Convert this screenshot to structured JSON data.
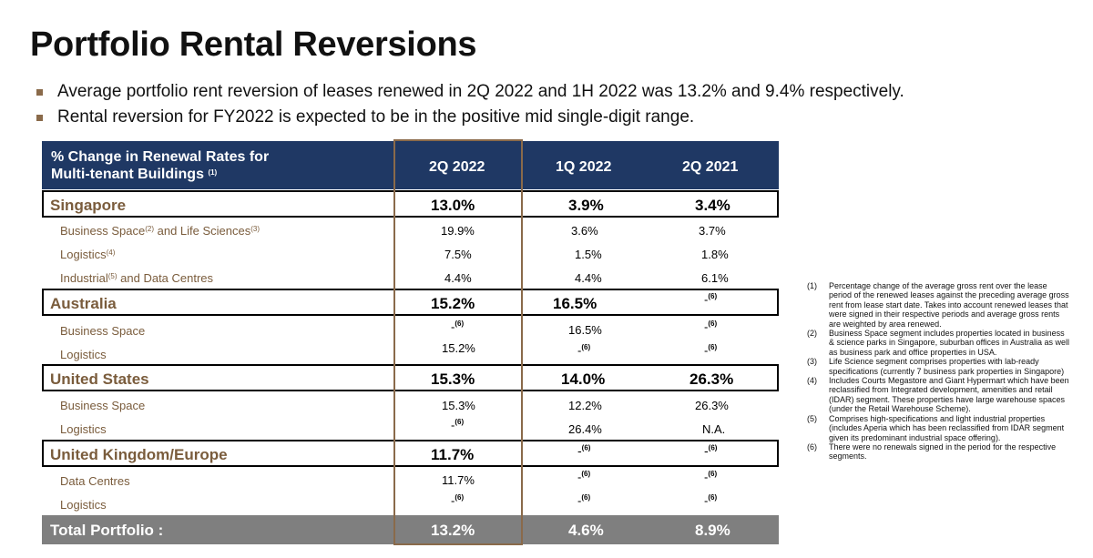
{
  "title": "Portfolio Rental Reversions",
  "bullets": [
    "Average portfolio rent reversion of leases renewed in 2Q 2022 and 1H 2022 was 13.2% and 9.4% respectively.",
    "Rental reversion for FY2022 is expected to be in the positive mid single-digit range."
  ],
  "table": {
    "header_label_line1": "% Change in Renewal Rates for",
    "header_label_line2": "Multi-tenant Buildings",
    "header_label_note": "(1)",
    "columns": [
      "2Q 2022",
      "1Q 2022",
      "2Q 2021"
    ],
    "highlighted_column": "2Q 2022",
    "not_renewed_mark": "-",
    "not_renewed_note": "(6)",
    "segments": {
      "singapore": {
        "label": "Singapore",
        "values": [
          "13.0%",
          "3.9%",
          "3.4%"
        ],
        "rows": {
          "business_space": {
            "label_a": "Business Space",
            "note_a": "(2)",
            "label_b": " and Life Sciences",
            "note_b": "(3)",
            "values": [
              "19.9%",
              "3.6%",
              "3.7%"
            ]
          },
          "logistics": {
            "label": "Logistics",
            "note": "(4)",
            "values": [
              "7.5%",
              "1.5%",
              "1.8%"
            ]
          },
          "industrial": {
            "label_a": "Industrial",
            "note_a": "(5)",
            "label_b": " and Data Centres",
            "values": [
              "4.4%",
              "4.4%",
              "6.1%"
            ]
          }
        }
      },
      "australia": {
        "label": "Australia",
        "values": [
          "15.2%",
          "16.5%",
          null
        ],
        "rows": {
          "business_space": {
            "label": "Business Space",
            "values": [
              null,
              "16.5%",
              null
            ]
          },
          "logistics": {
            "label": "Logistics",
            "values": [
              "15.2%",
              null,
              null
            ]
          }
        }
      },
      "united_states": {
        "label": "United States",
        "values": [
          "15.3%",
          "14.0%",
          "26.3%"
        ],
        "rows": {
          "business_space": {
            "label": "Business Space",
            "values": [
              "15.3%",
              "12.2%",
              "26.3%"
            ]
          },
          "logistics": {
            "label": "Logistics",
            "values": [
              null,
              "26.4%",
              "N.A."
            ]
          }
        }
      },
      "uk_europe": {
        "label": "United Kingdom/Europe",
        "values": [
          "11.7%",
          null,
          null
        ],
        "rows": {
          "data_centres": {
            "label": "Data Centres",
            "values": [
              "11.7%",
              null,
              null
            ]
          },
          "logistics": {
            "label": "Logistics",
            "values": [
              null,
              null,
              null
            ]
          }
        }
      }
    },
    "total": {
      "label": "Total Portfolio :",
      "values": [
        "13.2%",
        "4.6%",
        "8.9%"
      ]
    }
  },
  "footnotes": [
    {
      "num": "(1)",
      "text": "Percentage change of the average gross rent over the lease period of the renewed leases against the preceding average gross rent from lease start date. Takes into account renewed leases that were signed in their respective periods and average gross rents are weighted by area renewed."
    },
    {
      "num": "(2)",
      "text": "Business Space segment includes properties located in business & science parks in Singapore, suburban offices in Australia as well as business park and office properties in USA."
    },
    {
      "num": "(3)",
      "text": "Life Science segment comprises properties with lab-ready specifications (currently 7 business park properties in Singapore)"
    },
    {
      "num": "(4)",
      "text": "Includes Courts Megastore and Giant Hypermart which have been reclassified from Integrated development, amenities and retail (IDAR) segment. These properties have large warehouse spaces (under the Retail Warehouse Scheme)."
    },
    {
      "num": "(5)",
      "text": "Comprises high-specifications and light industrial properties (includes Aperia which has been reclassified from IDAR segment given its predominant industrial space offering)."
    },
    {
      "num": "(6)",
      "text": "There were no renewals signed in the period for the respective segments."
    }
  ]
}
